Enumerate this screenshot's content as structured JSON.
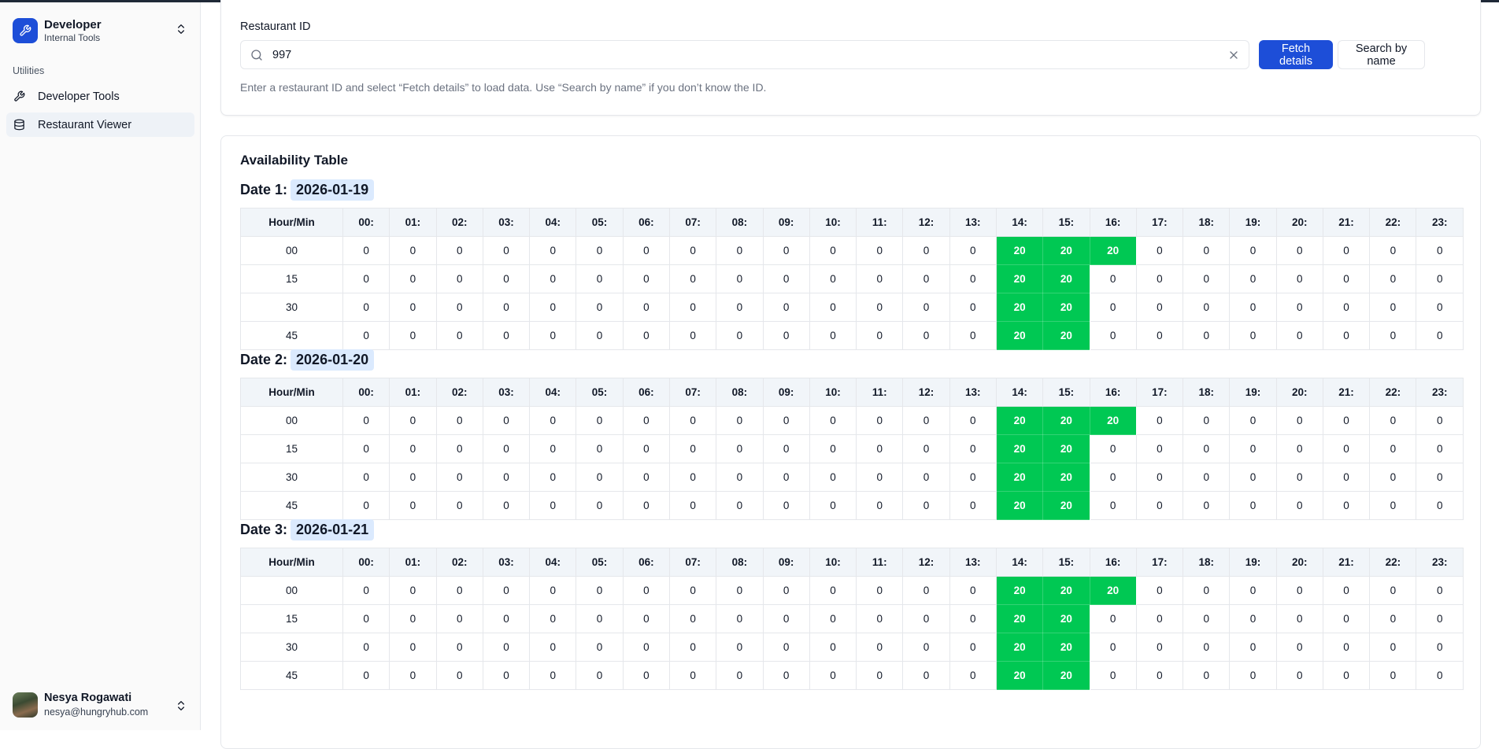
{
  "sidebar": {
    "brand_title": "Developer",
    "brand_subtitle": "Internal Tools",
    "section_label": "Utilities",
    "items": [
      {
        "label": "Developer Tools",
        "icon": "wrench-icon",
        "active": false
      },
      {
        "label": "Restaurant Viewer",
        "icon": "database-icon",
        "active": true
      }
    ],
    "user": {
      "name": "Nesya Rogawati",
      "email": "nesya@hungryhub.com"
    }
  },
  "lookup": {
    "field_label": "Restaurant ID",
    "input_value": "997",
    "fetch_label": "Fetch details",
    "search_label": "Search by name",
    "hint": "Enter a restaurant ID and select “Fetch details” to load data. Use “Search by name” if you don’t know the ID."
  },
  "availability": {
    "title": "Availability Table",
    "corner_header": "Hour/Min",
    "hours": [
      "00:",
      "01:",
      "02:",
      "03:",
      "04:",
      "05:",
      "06:",
      "07:",
      "08:",
      "09:",
      "10:",
      "11:",
      "12:",
      "13:",
      "14:",
      "15:",
      "16:",
      "17:",
      "18:",
      "19:",
      "20:",
      "21:",
      "22:",
      "23:"
    ],
    "minutes": [
      "00",
      "15",
      "30",
      "45"
    ],
    "highlight_color": "#00c853",
    "dates": [
      {
        "label": "Date 1:",
        "date": "2026-01-19",
        "rows": [
          [
            0,
            0,
            0,
            0,
            0,
            0,
            0,
            0,
            0,
            0,
            0,
            0,
            0,
            0,
            20,
            20,
            20,
            0,
            0,
            0,
            0,
            0,
            0,
            0
          ],
          [
            0,
            0,
            0,
            0,
            0,
            0,
            0,
            0,
            0,
            0,
            0,
            0,
            0,
            0,
            20,
            20,
            0,
            0,
            0,
            0,
            0,
            0,
            0,
            0
          ],
          [
            0,
            0,
            0,
            0,
            0,
            0,
            0,
            0,
            0,
            0,
            0,
            0,
            0,
            0,
            20,
            20,
            0,
            0,
            0,
            0,
            0,
            0,
            0,
            0
          ],
          [
            0,
            0,
            0,
            0,
            0,
            0,
            0,
            0,
            0,
            0,
            0,
            0,
            0,
            0,
            20,
            20,
            0,
            0,
            0,
            0,
            0,
            0,
            0,
            0
          ]
        ]
      },
      {
        "label": "Date 2:",
        "date": "2026-01-20",
        "rows": [
          [
            0,
            0,
            0,
            0,
            0,
            0,
            0,
            0,
            0,
            0,
            0,
            0,
            0,
            0,
            20,
            20,
            20,
            0,
            0,
            0,
            0,
            0,
            0,
            0
          ],
          [
            0,
            0,
            0,
            0,
            0,
            0,
            0,
            0,
            0,
            0,
            0,
            0,
            0,
            0,
            20,
            20,
            0,
            0,
            0,
            0,
            0,
            0,
            0,
            0
          ],
          [
            0,
            0,
            0,
            0,
            0,
            0,
            0,
            0,
            0,
            0,
            0,
            0,
            0,
            0,
            20,
            20,
            0,
            0,
            0,
            0,
            0,
            0,
            0,
            0
          ],
          [
            0,
            0,
            0,
            0,
            0,
            0,
            0,
            0,
            0,
            0,
            0,
            0,
            0,
            0,
            20,
            20,
            0,
            0,
            0,
            0,
            0,
            0,
            0,
            0
          ]
        ]
      },
      {
        "label": "Date 3:",
        "date": "2026-01-21",
        "rows": [
          [
            0,
            0,
            0,
            0,
            0,
            0,
            0,
            0,
            0,
            0,
            0,
            0,
            0,
            0,
            20,
            20,
            20,
            0,
            0,
            0,
            0,
            0,
            0,
            0
          ],
          [
            0,
            0,
            0,
            0,
            0,
            0,
            0,
            0,
            0,
            0,
            0,
            0,
            0,
            0,
            20,
            20,
            0,
            0,
            0,
            0,
            0,
            0,
            0,
            0
          ],
          [
            0,
            0,
            0,
            0,
            0,
            0,
            0,
            0,
            0,
            0,
            0,
            0,
            0,
            0,
            20,
            20,
            0,
            0,
            0,
            0,
            0,
            0,
            0,
            0
          ],
          [
            0,
            0,
            0,
            0,
            0,
            0,
            0,
            0,
            0,
            0,
            0,
            0,
            0,
            0,
            20,
            20,
            0,
            0,
            0,
            0,
            0,
            0,
            0,
            0
          ]
        ]
      }
    ]
  }
}
